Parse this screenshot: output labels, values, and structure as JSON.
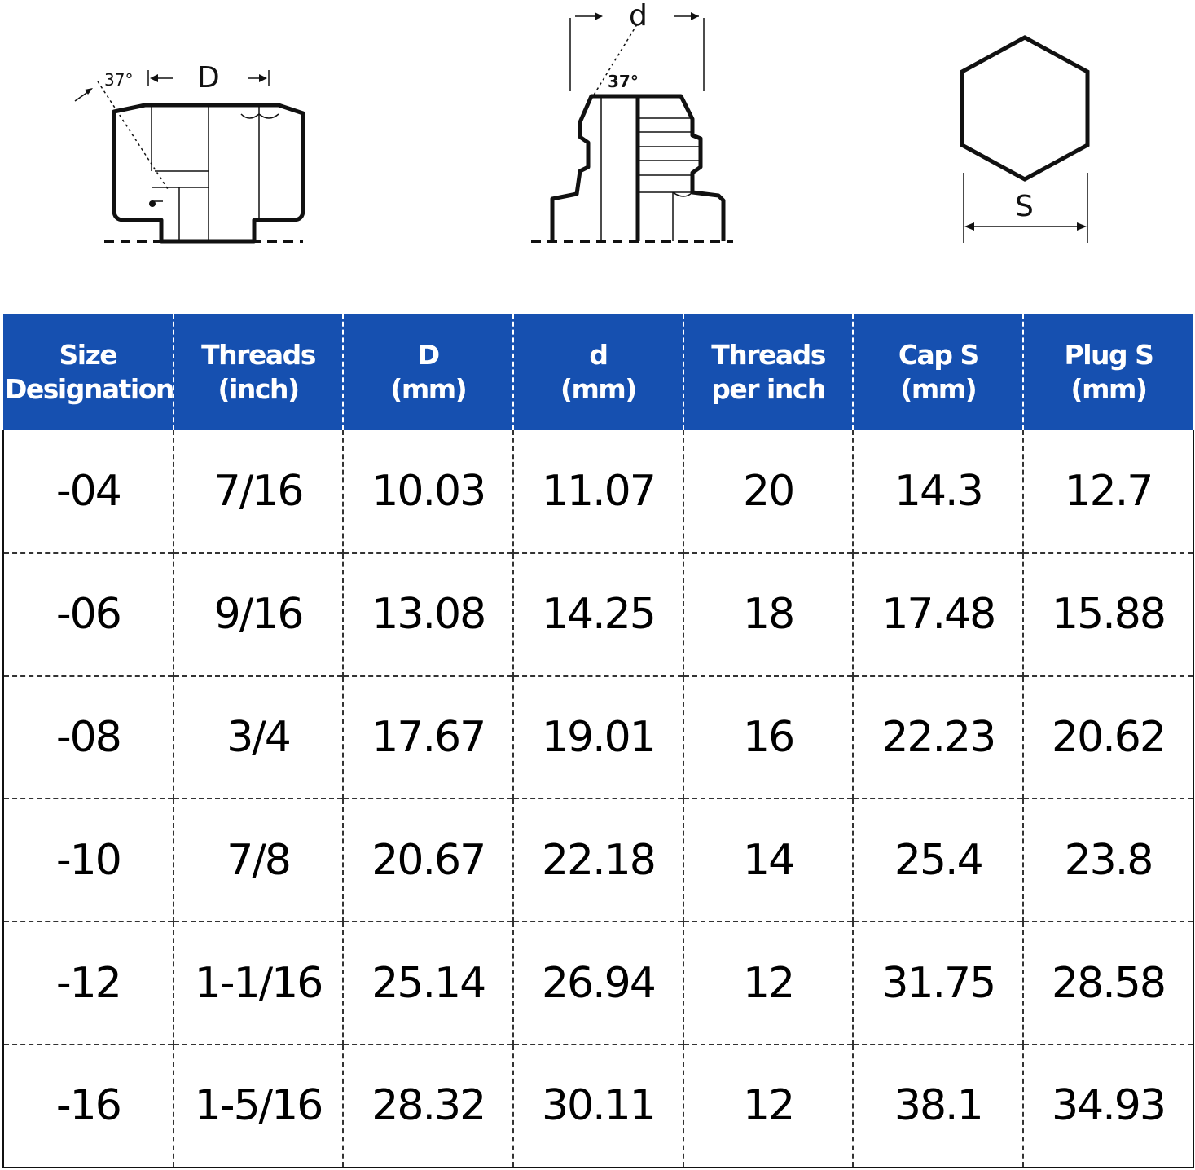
{
  "diagrams": {
    "cap": {
      "angle_label": "37°",
      "dim_label": "D"
    },
    "plug": {
      "angle_label": "37°",
      "dim_label": "d"
    },
    "hex": {
      "dim_label": "S"
    }
  },
  "colors": {
    "header_bg": "#1650b0",
    "header_text": "#ffffff",
    "cell_text": "#000000"
  },
  "table": {
    "headers": [
      [
        "Size",
        "Designation"
      ],
      [
        "Threads",
        "(inch)"
      ],
      [
        "D",
        "(mm)"
      ],
      [
        "d",
        "(mm)"
      ],
      [
        "Threads",
        "per inch"
      ],
      [
        "Cap S",
        "(mm)"
      ],
      [
        "Plug S",
        "(mm)"
      ]
    ],
    "rows": [
      [
        "-04",
        "7/16",
        "10.03",
        "11.07",
        "20",
        "14.3",
        "12.7"
      ],
      [
        "-06",
        "9/16",
        "13.08",
        "14.25",
        "18",
        "17.48",
        "15.88"
      ],
      [
        "-08",
        "3/4",
        "17.67",
        "19.01",
        "16",
        "22.23",
        "20.62"
      ],
      [
        "-10",
        "7/8",
        "20.67",
        "22.18",
        "14",
        "25.4",
        "23.8"
      ],
      [
        "-12",
        "1-1/16",
        "25.14",
        "26.94",
        "12",
        "31.75",
        "28.58"
      ],
      [
        "-16",
        "1-5/16",
        "28.32",
        "30.11",
        "12",
        "38.1",
        "34.93"
      ]
    ]
  }
}
